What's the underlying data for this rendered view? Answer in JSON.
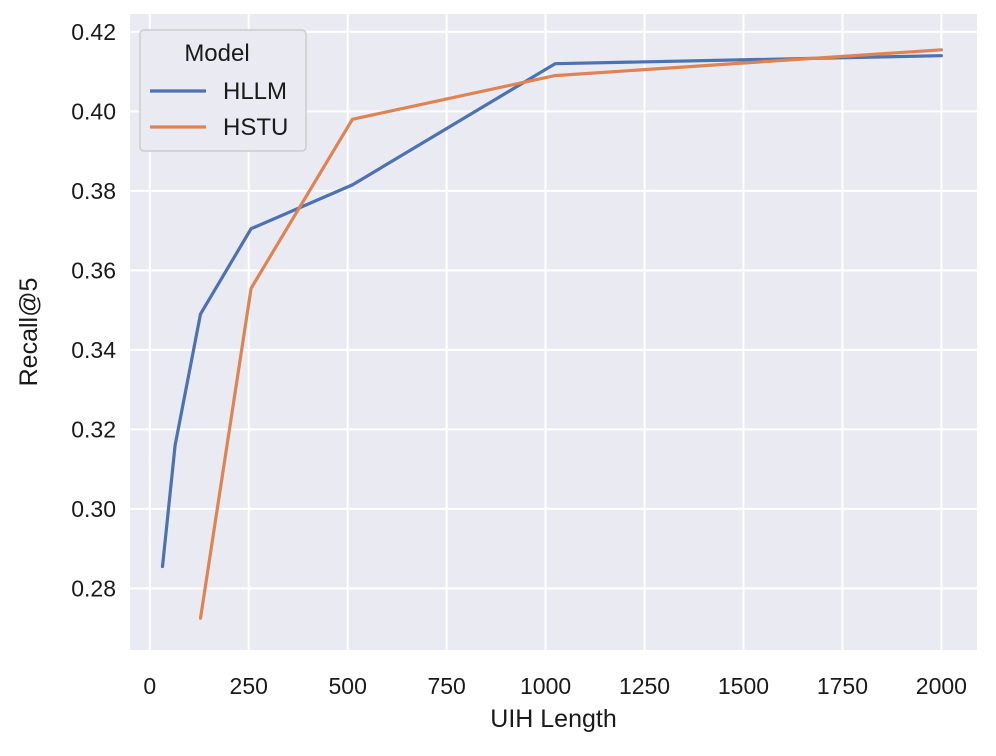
{
  "chart_data": {
    "type": "line",
    "title": "",
    "xlabel": "UIH Length",
    "ylabel": "Recall@5",
    "xlim": [
      -50,
      2090
    ],
    "ylim": [
      0.2645,
      0.4245
    ],
    "x_ticks": [
      0,
      250,
      500,
      750,
      1000,
      1250,
      1500,
      1750,
      2000
    ],
    "y_ticks": [
      0.28,
      0.3,
      0.32,
      0.34,
      0.36,
      0.38,
      0.4,
      0.42
    ],
    "grid": true,
    "legend": {
      "title": "Model",
      "position": "top-left"
    },
    "series": [
      {
        "name": "HLLM",
        "color": "#4c72b0",
        "x": [
          32,
          64,
          128,
          256,
          512,
          1024,
          2000
        ],
        "y": [
          0.2855,
          0.316,
          0.349,
          0.3705,
          0.3815,
          0.412,
          0.414
        ]
      },
      {
        "name": "HSTU",
        "color": "#dd8452",
        "x": [
          128,
          256,
          512,
          1024,
          2000
        ],
        "y": [
          0.2725,
          0.3555,
          0.398,
          0.409,
          0.4155
        ]
      }
    ]
  },
  "colors": {
    "plot_background": "#eaeaf2",
    "grid": "#ffffff",
    "legend_background": "#eaeaf2",
    "legend_border": "#cccccc"
  }
}
